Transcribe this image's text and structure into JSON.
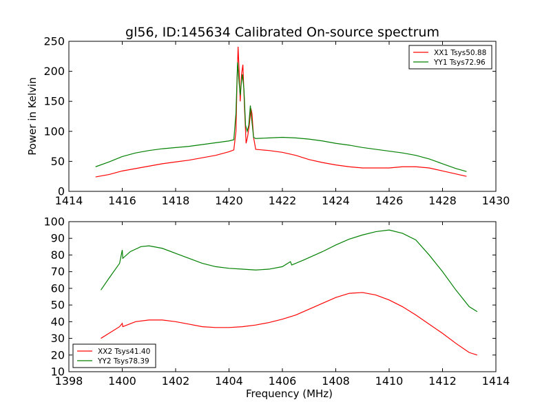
{
  "figure_title": "gl56, ID:145634 Calibrated On-source spectrum",
  "chart_data": [
    {
      "type": "line",
      "title": "gl56, ID:145634 Calibrated On-source spectrum",
      "xlabel": "",
      "ylabel": "Power in Kelvin",
      "xlim": [
        1414,
        1430
      ],
      "ylim": [
        0,
        250
      ],
      "xticks": [
        1414,
        1416,
        1418,
        1420,
        1422,
        1424,
        1426,
        1428,
        1430
      ],
      "yticks": [
        0,
        50,
        100,
        150,
        200,
        250
      ],
      "legend_position": "upper right",
      "series": [
        {
          "name": "XX1 Tsys50.88",
          "color": "#ff0000",
          "points": [
            [
              1415.0,
              24
            ],
            [
              1415.5,
              28
            ],
            [
              1416.0,
              34
            ],
            [
              1416.5,
              38
            ],
            [
              1417.0,
              42
            ],
            [
              1417.5,
              46
            ],
            [
              1418.0,
              49
            ],
            [
              1418.5,
              52
            ],
            [
              1419.0,
              56
            ],
            [
              1419.5,
              60
            ],
            [
              1420.0,
              66
            ],
            [
              1420.18,
              69
            ],
            [
              1420.26,
              100
            ],
            [
              1420.3,
              180
            ],
            [
              1420.34,
              241
            ],
            [
              1420.38,
              200
            ],
            [
              1420.42,
              150
            ],
            [
              1420.47,
              195
            ],
            [
              1420.52,
              211
            ],
            [
              1420.58,
              140
            ],
            [
              1420.64,
              80
            ],
            [
              1420.7,
              92
            ],
            [
              1420.76,
              110
            ],
            [
              1420.82,
              138
            ],
            [
              1420.86,
              130
            ],
            [
              1420.92,
              90
            ],
            [
              1421.0,
              70
            ],
            [
              1421.5,
              68
            ],
            [
              1422.0,
              65
            ],
            [
              1422.5,
              60
            ],
            [
              1423.0,
              53
            ],
            [
              1423.5,
              48
            ],
            [
              1424.0,
              44
            ],
            [
              1424.5,
              41
            ],
            [
              1425.0,
              39
            ],
            [
              1425.5,
              39
            ],
            [
              1426.0,
              39
            ],
            [
              1426.5,
              41
            ],
            [
              1427.0,
              41
            ],
            [
              1427.5,
              39
            ],
            [
              1428.0,
              34
            ],
            [
              1428.5,
              29
            ],
            [
              1428.9,
              25
            ]
          ]
        },
        {
          "name": "YY1 Tsys72.96",
          "color": "#008000",
          "points": [
            [
              1415.0,
              41
            ],
            [
              1415.5,
              49
            ],
            [
              1416.0,
              58
            ],
            [
              1416.5,
              64
            ],
            [
              1417.0,
              68
            ],
            [
              1417.5,
              71
            ],
            [
              1418.0,
              73
            ],
            [
              1418.5,
              75
            ],
            [
              1419.0,
              78
            ],
            [
              1419.5,
              81
            ],
            [
              1420.0,
              84
            ],
            [
              1420.18,
              86
            ],
            [
              1420.26,
              130
            ],
            [
              1420.32,
              215
            ],
            [
              1420.38,
              180
            ],
            [
              1420.42,
              160
            ],
            [
              1420.46,
              180
            ],
            [
              1420.5,
              195
            ],
            [
              1420.56,
              170
            ],
            [
              1420.62,
              110
            ],
            [
              1420.68,
              100
            ],
            [
              1420.74,
              110
            ],
            [
              1420.8,
              143
            ],
            [
              1420.85,
              120
            ],
            [
              1420.92,
              90
            ],
            [
              1421.0,
              88
            ],
            [
              1421.5,
              89
            ],
            [
              1422.0,
              90
            ],
            [
              1422.5,
              89
            ],
            [
              1423.0,
              87
            ],
            [
              1423.5,
              84
            ],
            [
              1424.0,
              80
            ],
            [
              1424.5,
              77
            ],
            [
              1425.0,
              73
            ],
            [
              1425.5,
              70
            ],
            [
              1426.0,
              67
            ],
            [
              1426.5,
              64
            ],
            [
              1427.0,
              60
            ],
            [
              1427.5,
              54
            ],
            [
              1428.0,
              46
            ],
            [
              1428.5,
              38
            ],
            [
              1428.9,
              33
            ]
          ]
        }
      ]
    },
    {
      "type": "line",
      "title": "",
      "xlabel": "Frequency (MHz)",
      "ylabel": "",
      "xlim": [
        1398,
        1414
      ],
      "ylim": [
        10,
        100
      ],
      "xticks": [
        1398,
        1400,
        1402,
        1404,
        1406,
        1408,
        1410,
        1412,
        1414
      ],
      "yticks": [
        10,
        20,
        30,
        40,
        50,
        60,
        70,
        80,
        90,
        100
      ],
      "legend_position": "lower left",
      "series": [
        {
          "name": "XX2 Tsys41.40",
          "color": "#ff0000",
          "points": [
            [
              1399.2,
              30
            ],
            [
              1399.5,
              33
            ],
            [
              1399.9,
              37
            ],
            [
              1400.0,
              39
            ],
            [
              1400.02,
              37
            ],
            [
              1400.5,
              40
            ],
            [
              1401.0,
              41
            ],
            [
              1401.5,
              41
            ],
            [
              1402.0,
              40
            ],
            [
              1402.5,
              38.5
            ],
            [
              1403.0,
              37
            ],
            [
              1403.5,
              36.5
            ],
            [
              1404.0,
              36.5
            ],
            [
              1404.5,
              37
            ],
            [
              1405.0,
              38
            ],
            [
              1405.5,
              39.5
            ],
            [
              1406.0,
              41.5
            ],
            [
              1406.5,
              44
            ],
            [
              1407.0,
              47.5
            ],
            [
              1407.5,
              51
            ],
            [
              1408.0,
              54.5
            ],
            [
              1408.5,
              57
            ],
            [
              1409.0,
              57.5
            ],
            [
              1409.5,
              56
            ],
            [
              1410.0,
              53
            ],
            [
              1410.5,
              49
            ],
            [
              1411.0,
              44
            ],
            [
              1411.5,
              38.5
            ],
            [
              1412.0,
              33
            ],
            [
              1412.5,
              27
            ],
            [
              1413.0,
              21.5
            ],
            [
              1413.3,
              20
            ]
          ]
        },
        {
          "name": "YY2 Tsys78.39",
          "color": "#008000",
          "points": [
            [
              1399.2,
              59
            ],
            [
              1399.5,
              66
            ],
            [
              1399.9,
              75
            ],
            [
              1400.0,
              83
            ],
            [
              1400.02,
              78
            ],
            [
              1400.3,
              82
            ],
            [
              1400.7,
              85
            ],
            [
              1401.0,
              85.5
            ],
            [
              1401.5,
              84
            ],
            [
              1402.0,
              81
            ],
            [
              1402.5,
              78
            ],
            [
              1403.0,
              75
            ],
            [
              1403.5,
              73
            ],
            [
              1404.0,
              72
            ],
            [
              1404.5,
              71.5
            ],
            [
              1405.0,
              71
            ],
            [
              1405.5,
              71.5
            ],
            [
              1406.0,
              73
            ],
            [
              1406.3,
              76
            ],
            [
              1406.35,
              74
            ],
            [
              1406.8,
              77
            ],
            [
              1407.5,
              82
            ],
            [
              1408.0,
              86
            ],
            [
              1408.5,
              89.5
            ],
            [
              1409.0,
              92
            ],
            [
              1409.5,
              94
            ],
            [
              1410.0,
              95
            ],
            [
              1410.5,
              93
            ],
            [
              1411.0,
              89
            ],
            [
              1411.5,
              80
            ],
            [
              1412.0,
              70
            ],
            [
              1412.5,
              59
            ],
            [
              1413.0,
              49
            ],
            [
              1413.3,
              46
            ]
          ]
        }
      ]
    }
  ]
}
